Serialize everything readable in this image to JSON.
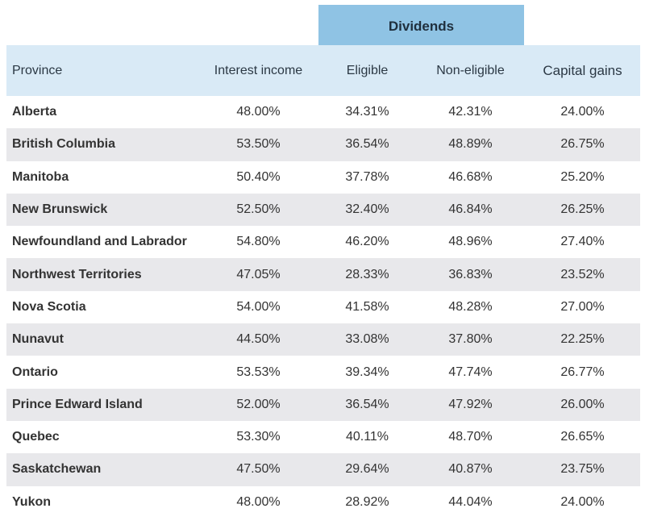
{
  "table": {
    "group_header": "Dividends",
    "headers": {
      "province": "Province",
      "interest": "Interest income",
      "eligible": "Eligible",
      "non_eligible": "Non-eligible",
      "capital_gains": "Capital gains"
    },
    "rows": [
      {
        "province": "Alberta",
        "interest": "48.00%",
        "eligible": "34.31%",
        "non_eligible": "42.31%",
        "capital_gains": "24.00%"
      },
      {
        "province": "British Columbia",
        "interest": "53.50%",
        "eligible": "36.54%",
        "non_eligible": "48.89%",
        "capital_gains": "26.75%"
      },
      {
        "province": "Manitoba",
        "interest": "50.40%",
        "eligible": "37.78%",
        "non_eligible": "46.68%",
        "capital_gains": "25.20%"
      },
      {
        "province": "New Brunswick",
        "interest": "52.50%",
        "eligible": "32.40%",
        "non_eligible": "46.84%",
        "capital_gains": "26.25%"
      },
      {
        "province": "Newfoundland and Labrador",
        "interest": "54.80%",
        "eligible": "46.20%",
        "non_eligible": "48.96%",
        "capital_gains": "27.40%"
      },
      {
        "province": "Northwest Territories",
        "interest": "47.05%",
        "eligible": "28.33%",
        "non_eligible": "36.83%",
        "capital_gains": "23.52%"
      },
      {
        "province": "Nova Scotia",
        "interest": "54.00%",
        "eligible": "41.58%",
        "non_eligible": "48.28%",
        "capital_gains": "27.00%"
      },
      {
        "province": "Nunavut",
        "interest": "44.50%",
        "eligible": "33.08%",
        "non_eligible": "37.80%",
        "capital_gains": "22.25%"
      },
      {
        "province": "Ontario",
        "interest": "53.53%",
        "eligible": "39.34%",
        "non_eligible": "47.74%",
        "capital_gains": "26.77%"
      },
      {
        "province": "Prince Edward Island",
        "interest": "52.00%",
        "eligible": "36.54%",
        "non_eligible": "47.92%",
        "capital_gains": "26.00%"
      },
      {
        "province": "Quebec",
        "interest": "53.30%",
        "eligible": "40.11%",
        "non_eligible": "48.70%",
        "capital_gains": "26.65%"
      },
      {
        "province": "Saskatchewan",
        "interest": "47.50%",
        "eligible": "29.64%",
        "non_eligible": "40.87%",
        "capital_gains": "23.75%"
      },
      {
        "province": "Yukon",
        "interest": "48.00%",
        "eligible": "28.92%",
        "non_eligible": "44.04%",
        "capital_gains": "24.00%"
      }
    ]
  },
  "colors": {
    "group_header_bg": "#8fc3e4",
    "header_bg": "#d9eaf6",
    "stripe_bg": "#e8e8eb"
  }
}
